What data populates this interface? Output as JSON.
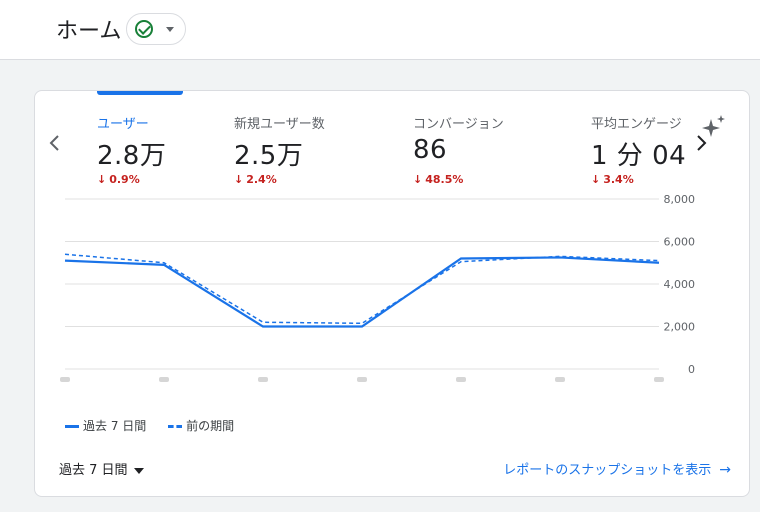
{
  "header": {
    "title": "ホーム",
    "status_icon": "check-circle-icon",
    "dropdown_icon": "caret-down-icon"
  },
  "metrics": [
    {
      "label": "ユーザー",
      "value": "2.8万",
      "delta": "0.9%",
      "direction": "down",
      "active": true
    },
    {
      "label": "新規ユーザー数",
      "value": "2.5万",
      "delta": "2.4%",
      "direction": "down",
      "active": false
    },
    {
      "label": "コンバージョン",
      "value": "86",
      "delta": "48.5%",
      "direction": "down",
      "active": false
    },
    {
      "label": "平均エンゲージ",
      "value": "1 分 04",
      "delta": "3.4%",
      "direction": "down",
      "active": false
    }
  ],
  "nav": {
    "prev_icon": "chevron-left-icon",
    "next_icon": "chevron-right-icon",
    "insights_icon": "sparkle-icon"
  },
  "chart_data": {
    "type": "line",
    "yticks": [
      "8,000",
      "6,000",
      "4,000",
      "2,000",
      "0"
    ],
    "ylim": [
      0,
      8000
    ],
    "grid": true,
    "points": 7,
    "series": [
      {
        "name": "過去 7 日間",
        "style": "solid",
        "values": [
          5100,
          4900,
          2000,
          2000,
          5200,
          5250,
          5000
        ]
      },
      {
        "name": "前の期間",
        "style": "dashed",
        "values": [
          5400,
          5000,
          2200,
          2150,
          5050,
          5300,
          5100
        ]
      }
    ]
  },
  "legend": {
    "current": "過去 7 日間",
    "previous": "前の期間"
  },
  "footer": {
    "period_label": "過去 7 日間",
    "snapshot_link": "レポートのスナップショットを表示",
    "snapshot_arrow": "→"
  },
  "colors": {
    "accent": "#1a73e8",
    "negative": "#c5221f",
    "success": "#188038"
  }
}
